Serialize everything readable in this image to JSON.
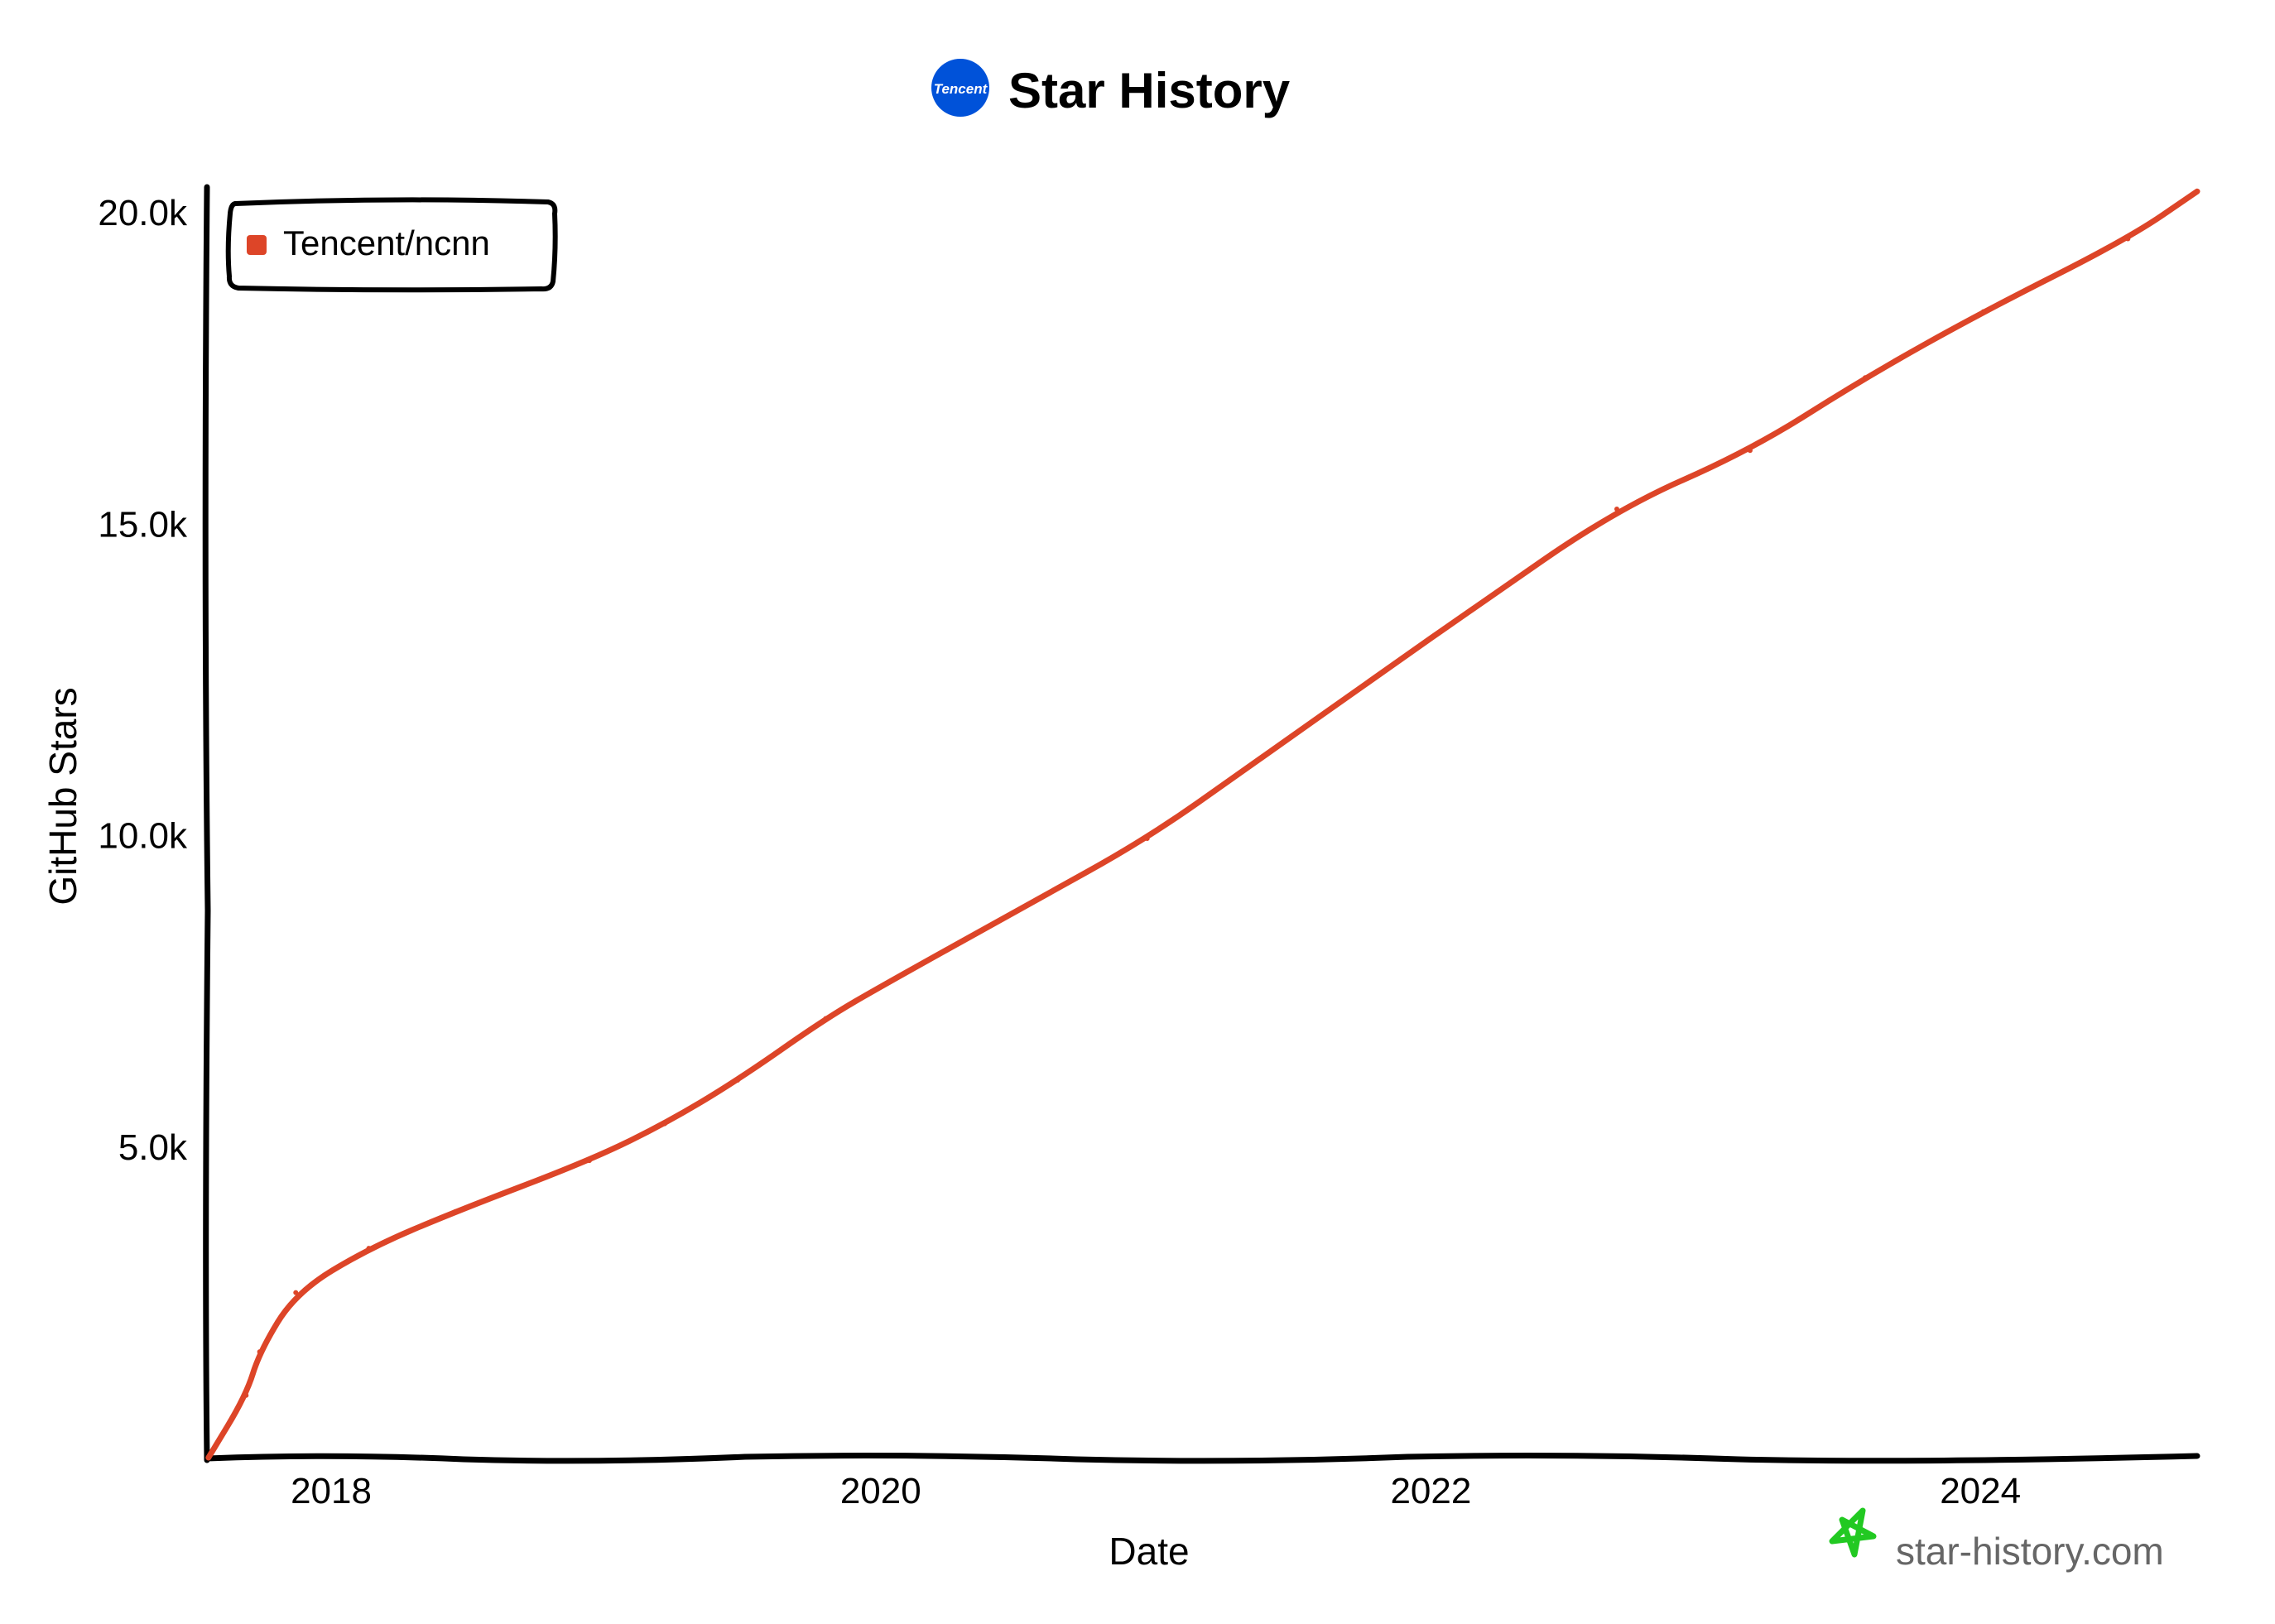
{
  "header": {
    "title": "Star History",
    "logo_text": "Tencent",
    "logo_color": "#0052D9"
  },
  "watermark": {
    "text": "star-history.com",
    "icon": "star-icon",
    "color": "#22c922"
  },
  "chart_data": {
    "type": "line",
    "title": "Star History",
    "xlabel": "Date",
    "ylabel": "GitHub Stars",
    "x_tick_labels": [
      "2018",
      "2020",
      "2022",
      "2024"
    ],
    "x_ticks": [
      "2018-01-01",
      "2020-01-01",
      "2022-01-01",
      "2024-01-01"
    ],
    "y_tick_labels": [
      "5.0k",
      "10.0k",
      "15.0k",
      "20.0k"
    ],
    "y_ticks": [
      5000,
      10000,
      15000,
      20000
    ],
    "xlim": [
      "2017-07-20",
      "2024-10-15"
    ],
    "ylim": [
      0,
      20400
    ],
    "grid": false,
    "legend_placement": "top-left",
    "series": [
      {
        "name": "Tencent/ncnn",
        "color": "#dd4528",
        "points": [
          {
            "x": "2017-07-22",
            "y": 0
          },
          {
            "x": "2017-09-10",
            "y": 1000
          },
          {
            "x": "2017-09-28",
            "y": 1700
          },
          {
            "x": "2017-11-15",
            "y": 2650
          },
          {
            "x": "2018-02-20",
            "y": 3360
          },
          {
            "x": "2018-06-15",
            "y": 3950
          },
          {
            "x": "2018-12-10",
            "y": 4770
          },
          {
            "x": "2019-03-20",
            "y": 5360
          },
          {
            "x": "2019-06-25",
            "y": 6060
          },
          {
            "x": "2019-10-20",
            "y": 7050
          },
          {
            "x": "2020-01-05",
            "y": 7590
          },
          {
            "x": "2020-07-15",
            "y": 8880
          },
          {
            "x": "2020-12-20",
            "y": 9940
          },
          {
            "x": "2021-05-05",
            "y": 11100
          },
          {
            "x": "2021-11-15",
            "y": 12760
          },
          {
            "x": "2022-02-20",
            "y": 13580
          },
          {
            "x": "2022-09-05",
            "y": 15230
          },
          {
            "x": "2023-03-01",
            "y": 16170
          },
          {
            "x": "2023-08-01",
            "y": 17340
          },
          {
            "x": "2024-01-05",
            "y": 18400
          },
          {
            "x": "2024-07-15",
            "y": 19570
          },
          {
            "x": "2024-10-15",
            "y": 20330
          }
        ]
      }
    ]
  }
}
